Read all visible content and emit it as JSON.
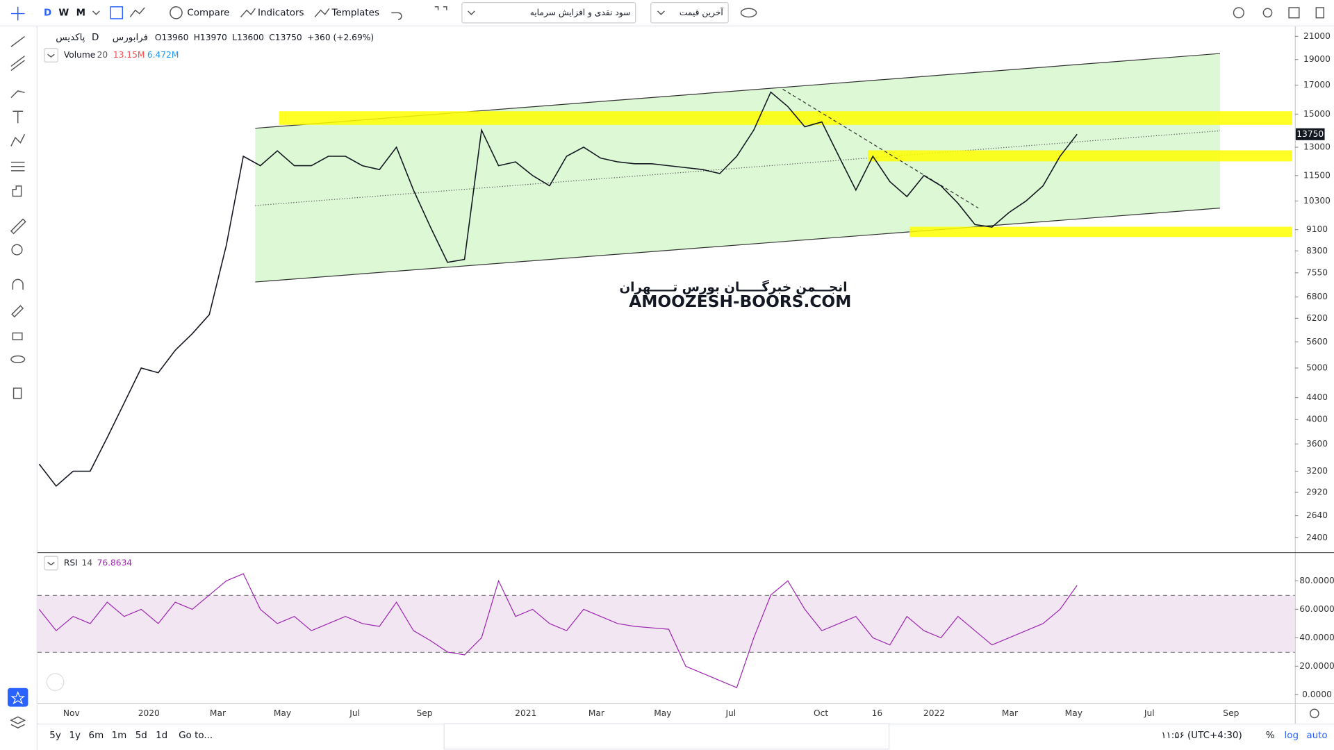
{
  "toolbar": {
    "intervals": [
      "D",
      "W",
      "M"
    ],
    "compare": "Compare",
    "indicators": "Indicators",
    "templates": "Templates",
    "dropdown_dividends": "سود نقدی و افزایش سرمایه",
    "dropdown_price": "آخرین قیمت"
  },
  "legend": {
    "symbol": "پاکدیس",
    "interval": "D",
    "exchange": "فرابورس",
    "ohlc": [
      {
        "label": "O",
        "value": 13960
      },
      {
        "label": "H",
        "value": 13970
      },
      {
        "label": "L",
        "value": 13600
      },
      {
        "label": "C",
        "value": 13750
      }
    ],
    "change": "+360 (+2.69%)",
    "volume_name": "Volume",
    "volume_length": "20",
    "volume_value": "13.15M",
    "volume_ma": "6.472M",
    "rsi_name": "RSI",
    "rsi_length": "14"
  },
  "watermark": [
    "انجـــمن خبرگـــــان بورس تـــــهران",
    "AMOOZESH-BOORS.COM"
  ],
  "chart_data": [
    {
      "type": "line",
      "log": true,
      "color": "#131722",
      "ylim": [
        2255,
        21850
      ],
      "yticks": [
        21000,
        19000,
        17000,
        15000,
        13000,
        11500,
        10300,
        9100,
        8300,
        7550,
        6800,
        6200,
        5600,
        5000,
        4400,
        4000,
        3600,
        3200,
        2920,
        2640,
        2400
      ],
      "values": [
        3300,
        3000,
        3200,
        3200,
        3700,
        4300,
        5000,
        4900,
        5400,
        5800,
        6300,
        8500,
        12500,
        12000,
        12800,
        12000,
        12000,
        12500,
        12500,
        12000,
        11800,
        13000,
        10800,
        9200,
        7900,
        8000,
        14000,
        12000,
        12200,
        11500,
        11000,
        12500,
        13000,
        12400,
        12200,
        12100,
        12100,
        12000,
        11900,
        11800,
        11600,
        12500,
        14000,
        16500,
        15500,
        14200,
        14500,
        12500,
        10800,
        12500,
        11200,
        10500,
        11500,
        11000,
        10200,
        9300,
        9200,
        9800,
        10300,
        11000,
        12500,
        13750
      ]
    },
    {
      "type": "line",
      "color": "#9c27b0",
      "ylim": [
        -6,
        99
      ],
      "yticks": [
        {
          "value": 80,
          "label": "80.0000"
        },
        {
          "value": 60,
          "label": "60.0000"
        },
        {
          "value": 40,
          "label": "40.0000"
        },
        {
          "value": 20,
          "label": "20.0000"
        },
        {
          "value": 0,
          "label": "0.0000"
        }
      ],
      "values": [
        60,
        45,
        55,
        50,
        65,
        55,
        60,
        50,
        65,
        60,
        70,
        80,
        85,
        60,
        50,
        55,
        45,
        50,
        55,
        50,
        48,
        65,
        45,
        38,
        30,
        28,
        40,
        80,
        55,
        60,
        50,
        45,
        60,
        55,
        50,
        48,
        47,
        46,
        20,
        15,
        10,
        5,
        40,
        70,
        80,
        60,
        45,
        50,
        55,
        40,
        35,
        55,
        45,
        40,
        55,
        45,
        35,
        40,
        45,
        50,
        60,
        76.8634
      ]
    }
  ],
  "time_axis": [
    "Nov",
    "2020",
    "Mar",
    "May",
    "Jul",
    "Sep",
    "2021",
    "Mar",
    "May",
    "Jul",
    "Oct",
    "16",
    "2022",
    "Mar",
    "May",
    "Jul",
    "Sep"
  ],
  "bottom_bar": {
    "ranges": [
      "5y",
      "1y",
      "6m",
      "1m",
      "5d",
      "1d"
    ],
    "goto": "Go to...",
    "clock": "۱۱:۵۶ (UTC+4:30)",
    "percent": "%",
    "log": "log",
    "auto": "auto"
  }
}
